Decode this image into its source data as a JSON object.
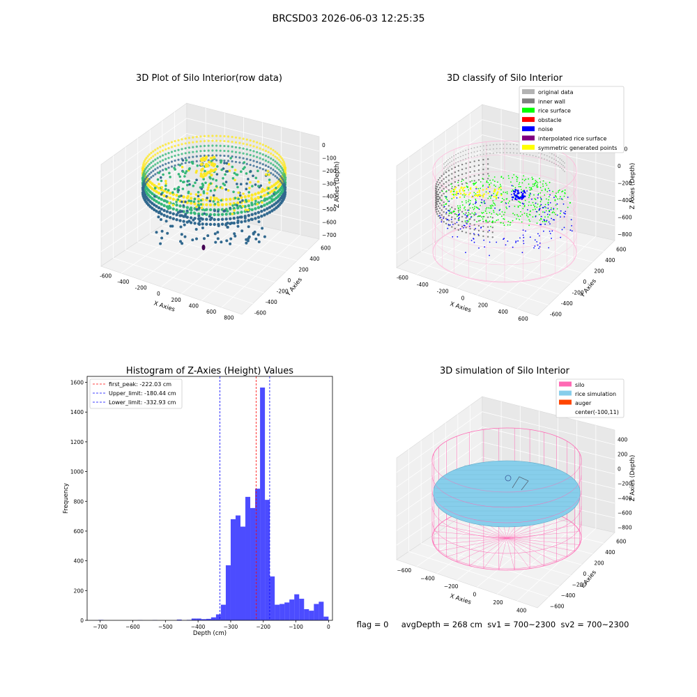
{
  "figure": {
    "suptitle": "BRCSD03 2026-06-03 12:25:35",
    "status_line": "flag = 0     avgDepth = 268 cm  sv1 = 700~2300  sv2 = 700~2300"
  },
  "chart_data": [
    {
      "type": "scatter",
      "subtype": "3d",
      "title": "3D Plot of Silo Interior(row data)",
      "xlabel": "X Axies",
      "ylabel": "Y Axies",
      "zlabel": "Z Axies (Depth)",
      "x_ticks": [
        "-600",
        "-400",
        "-200",
        "0",
        "200",
        "400",
        "600",
        "800"
      ],
      "y_ticks": [
        "-600",
        "-400",
        "-200",
        "0",
        "200",
        "400",
        "600"
      ],
      "z_ticks": [
        "0",
        "−100",
        "−200",
        "−300",
        "−400",
        "−500",
        "−600",
        "−700"
      ],
      "colormap": [
        "#440154",
        "#31688e",
        "#35b779",
        "#fde725"
      ]
    },
    {
      "type": "scatter",
      "subtype": "3d",
      "title": "3D classify of Silo Interior",
      "xlabel": "X Axies",
      "ylabel": "Y Axies",
      "zlabel": "Z Axies (Depth)",
      "x_ticks": [
        "-600",
        "-400",
        "-200",
        "0",
        "200",
        "400",
        "600"
      ],
      "y_ticks": [
        "-600",
        "-400",
        "-200",
        "0",
        "200",
        "400",
        "600"
      ],
      "z_ticks": [
        "200",
        "0",
        "−200",
        "−400",
        "−600",
        "−800"
      ],
      "legend_position": "upper-right",
      "legend": [
        {
          "label": "original data",
          "color": "#b3b3b3"
        },
        {
          "label": "inner wall",
          "color": "#808080"
        },
        {
          "label": "rice surface",
          "color": "#00ff00"
        },
        {
          "label": "obstacle",
          "color": "#ff0000"
        },
        {
          "label": "noise",
          "color": "#0000ff"
        },
        {
          "label": "interpolated rice surface",
          "color": "#800080"
        },
        {
          "label": "symmetric generated points",
          "color": "#ffff00"
        }
      ],
      "silo_wire_color": "#ffb6d9"
    },
    {
      "type": "bar",
      "subtype": "histogram",
      "title": "Histogram of Z-Axies (Height) Values",
      "xlabel": "Depth (cm)",
      "ylabel": "Frequency",
      "xlim": [
        -740,
        12
      ],
      "ylim": [
        0,
        1640
      ],
      "x_ticks": [
        -700,
        -600,
        -500,
        -400,
        -300,
        -200,
        -100,
        0
      ],
      "y_ticks": [
        0,
        200,
        400,
        600,
        800,
        1000,
        1200,
        1400,
        1600
      ],
      "bar_color": "#0000ff",
      "bins": [
        {
          "x0": -705,
          "x1": -690,
          "v": 3
        },
        {
          "x0": -585,
          "x1": -570,
          "v": 2
        },
        {
          "x0": -540,
          "x1": -525,
          "v": 2
        },
        {
          "x0": -465,
          "x1": -450,
          "v": 5
        },
        {
          "x0": -435,
          "x1": -420,
          "v": 3
        },
        {
          "x0": -420,
          "x1": -405,
          "v": 12
        },
        {
          "x0": -405,
          "x1": -390,
          "v": 12
        },
        {
          "x0": -390,
          "x1": -375,
          "v": 8
        },
        {
          "x0": -375,
          "x1": -360,
          "v": 10
        },
        {
          "x0": -360,
          "x1": -345,
          "v": 20
        },
        {
          "x0": -345,
          "x1": -330,
          "v": 40
        },
        {
          "x0": -330,
          "x1": -315,
          "v": 105
        },
        {
          "x0": -315,
          "x1": -300,
          "v": 370
        },
        {
          "x0": -300,
          "x1": -285,
          "v": 680
        },
        {
          "x0": -285,
          "x1": -270,
          "v": 705
        },
        {
          "x0": -270,
          "x1": -255,
          "v": 630
        },
        {
          "x0": -255,
          "x1": -240,
          "v": 830
        },
        {
          "x0": -240,
          "x1": -225,
          "v": 755
        },
        {
          "x0": -225,
          "x1": -210,
          "v": 885
        },
        {
          "x0": -210,
          "x1": -195,
          "v": 1565
        },
        {
          "x0": -195,
          "x1": -180,
          "v": 810
        },
        {
          "x0": -180,
          "x1": -165,
          "v": 295
        },
        {
          "x0": -165,
          "x1": -150,
          "v": 105
        },
        {
          "x0": -150,
          "x1": -135,
          "v": 110
        },
        {
          "x0": -135,
          "x1": -120,
          "v": 120
        },
        {
          "x0": -120,
          "x1": -105,
          "v": 140
        },
        {
          "x0": -105,
          "x1": -90,
          "v": 175
        },
        {
          "x0": -90,
          "x1": -75,
          "v": 145
        },
        {
          "x0": -75,
          "x1": -60,
          "v": 75
        },
        {
          "x0": -60,
          "x1": -45,
          "v": 65
        },
        {
          "x0": -45,
          "x1": -30,
          "v": 110
        },
        {
          "x0": -30,
          "x1": -15,
          "v": 125
        },
        {
          "x0": -15,
          "x1": 0,
          "v": 25
        }
      ],
      "vlines": [
        {
          "x": -222.03,
          "color": "#ff0000",
          "label": "first_peak: -222.03 cm"
        },
        {
          "x": -180.44,
          "color": "#0000ff",
          "label": "Upper_limit: -180.44 cm"
        },
        {
          "x": -332.93,
          "color": "#0000ff",
          "label": "Lower_limit: -332.93 cm"
        }
      ],
      "legend_position": "upper-left"
    },
    {
      "type": "scatter",
      "subtype": "3d-surface",
      "title": "3D simulation of Silo Interior",
      "xlabel": "X Axies",
      "ylabel": "Y Axies",
      "zlabel": "Z Axies (Depth)",
      "x_ticks": [
        "−600",
        "−400",
        "−200",
        "0",
        "200",
        "400"
      ],
      "y_ticks": [
        "−600",
        "−400",
        "−200",
        "0",
        "200",
        "400",
        "600"
      ],
      "z_ticks": [
        "400",
        "200",
        "0",
        "−200",
        "−400",
        "−600",
        "−800"
      ],
      "legend_position": "upper-right",
      "legend": [
        {
          "label": "silo",
          "color": "#ff69b4"
        },
        {
          "label": "rice simulation",
          "color": "#87ceeb"
        },
        {
          "label": "auger",
          "color": "#ff4500"
        },
        {
          "label": "center(-100,11)",
          "color": ""
        }
      ]
    }
  ]
}
